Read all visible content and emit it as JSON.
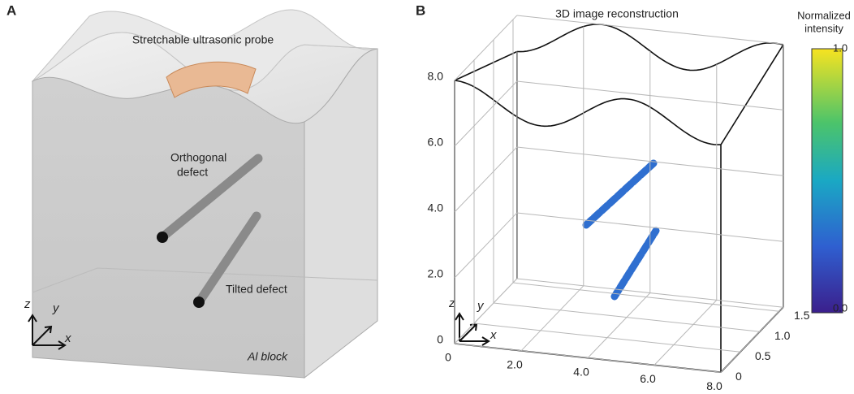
{
  "panel_a": {
    "letter": "A",
    "probe_label": "Stretchable ultrasonic probe",
    "orthogonal_label": [
      "Orthogonal",
      "defect"
    ],
    "tilted_label": "Tilted defect",
    "block_label": "Al block",
    "axes": {
      "z": "z",
      "y": "y",
      "x": "x"
    }
  },
  "panel_b": {
    "letter": "B",
    "title": "3D image reconstruction",
    "z_ticks": [
      "0",
      "2.0",
      "4.0",
      "6.0",
      "8.0"
    ],
    "x_ticks": [
      "0",
      "2.0",
      "4.0",
      "6.0",
      "8.0"
    ],
    "y_ticks": [
      "0",
      "0.5",
      "1.0",
      "1.5"
    ],
    "axes": {
      "z": "z",
      "y": "y",
      "x": "x"
    },
    "colorbar": {
      "title": [
        "Normalized",
        "intensity"
      ],
      "max": "1.0",
      "min": "0.0"
    }
  }
}
